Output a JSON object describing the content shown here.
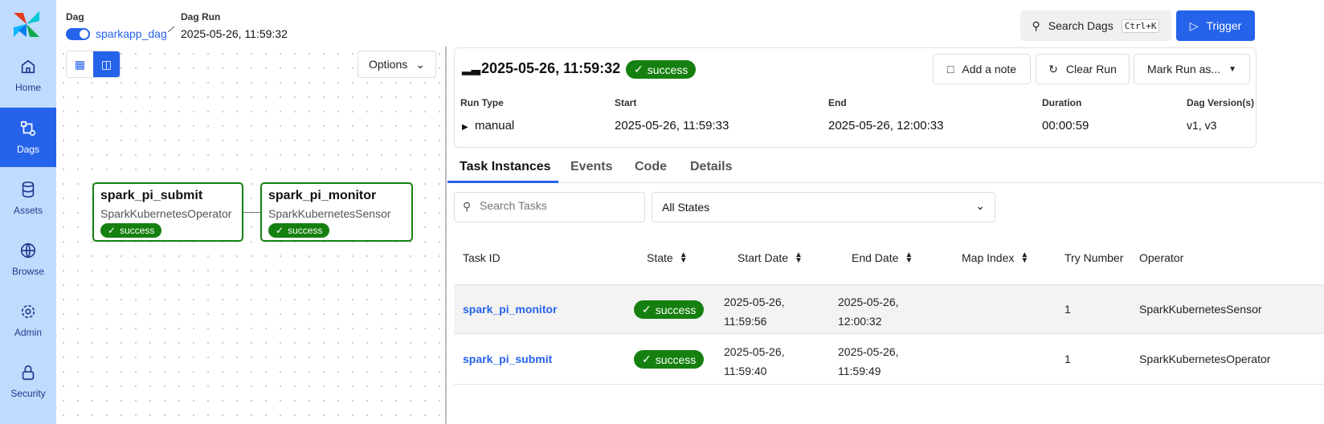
{
  "sidebar": {
    "items": [
      {
        "label": "Home",
        "icon": "home-icon"
      },
      {
        "label": "Dags",
        "icon": "dags-icon",
        "active": true
      },
      {
        "label": "Assets",
        "icon": "database-icon"
      },
      {
        "label": "Browse",
        "icon": "globe-icon"
      },
      {
        "label": "Admin",
        "icon": "gear-icon"
      },
      {
        "label": "Security",
        "icon": "lock-icon"
      }
    ]
  },
  "header": {
    "dag_label": "Dag",
    "dag_name": "sparkapp_dag",
    "dag_enabled": true,
    "run_label": "Dag Run",
    "run_value": "2025-05-26, 11:59:32",
    "search_label": "Search Dags",
    "search_shortcut": "Ctrl+K",
    "trigger_label": "Trigger"
  },
  "graph": {
    "options_label": "Options",
    "nodes": [
      {
        "id": "spark_pi_submit",
        "operator": "SparkKubernetesOperator",
        "state": "success"
      },
      {
        "id": "spark_pi_monitor",
        "operator": "SparkKubernetesSensor",
        "state": "success"
      }
    ]
  },
  "run": {
    "title": "2025-05-26, 11:59:32",
    "state": "success",
    "add_note": "Add a note",
    "clear_run": "Clear Run",
    "mark_run": "Mark Run as...",
    "fields": [
      {
        "label": "Run Type",
        "value": "manual"
      },
      {
        "label": "Start",
        "value": "2025-05-26, 11:59:33"
      },
      {
        "label": "End",
        "value": "2025-05-26, 12:00:33"
      },
      {
        "label": "Duration",
        "value": "00:00:59"
      },
      {
        "label": "Dag Version(s)",
        "value": "v1, v3"
      }
    ]
  },
  "tabs": [
    {
      "label": "Task Instances",
      "active": true
    },
    {
      "label": "Events"
    },
    {
      "label": "Code"
    },
    {
      "label": "Details"
    }
  ],
  "filters": {
    "search_placeholder": "Search Tasks",
    "state_select": "All States"
  },
  "table": {
    "columns": [
      "Task ID",
      "State",
      "Start Date",
      "End Date",
      "Map Index",
      "Try Number",
      "Operator"
    ],
    "rows": [
      {
        "task_id": "spark_pi_monitor",
        "state": "success",
        "start_1": "2025-05-26,",
        "start_2": "11:59:56",
        "end_1": "2025-05-26,",
        "end_2": "12:00:32",
        "map_index": "",
        "try": "1",
        "operator": "SparkKubernetesSensor"
      },
      {
        "task_id": "spark_pi_submit",
        "state": "success",
        "start_1": "2025-05-26,",
        "start_2": "11:59:40",
        "end_1": "2025-05-26,",
        "end_2": "11:59:49",
        "map_index": "",
        "try": "1",
        "operator": "SparkKubernetesOperator"
      }
    ]
  },
  "colors": {
    "accent": "#2563eb",
    "success": "#15800f",
    "sidebar": "#bfdbfe"
  }
}
